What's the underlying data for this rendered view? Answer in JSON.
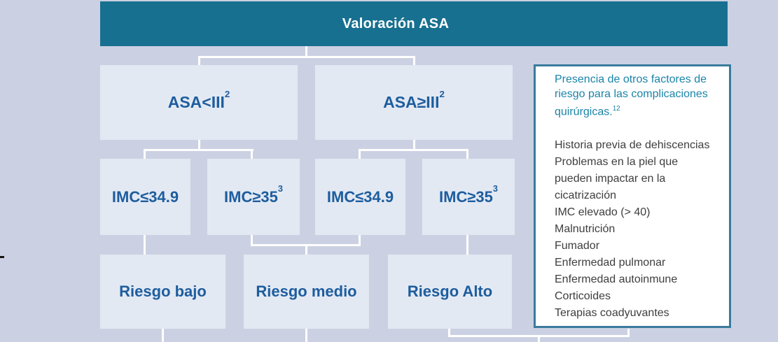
{
  "title_bar": {
    "title": "Valoración ASA"
  },
  "flowchart": {
    "nodes": {
      "asa_lt": {
        "text": "ASA<III",
        "sup": "2"
      },
      "asa_ge": {
        "text": "ASA≥III",
        "sup": "2"
      },
      "imc_low_left": {
        "text": "IMC≤34.9",
        "sup": ""
      },
      "imc_high_left": {
        "text": "IMC≥35",
        "sup": "3"
      },
      "imc_low_right": {
        "text": "IMC≤34.9",
        "sup": ""
      },
      "imc_high_right": {
        "text": "IMC≥35",
        "sup": "3"
      },
      "risk_low": {
        "text": "Riesgo bajo",
        "sup": ""
      },
      "risk_medium": {
        "text": "Riesgo medio",
        "sup": ""
      },
      "risk_high": {
        "text": "Riesgo Alto",
        "sup": ""
      }
    }
  },
  "side_panel": {
    "heading": "Presencia de otros factores de\nriesgo para las complicaciones\nquirúrgicas.",
    "heading_sup": "12",
    "risk_factors": [
      "Historia previa de dehiscencias",
      "Problemas en la piel que\npueden impactar en la\ncicatrización",
      "IMC elevado (> 40)",
      "Malnutrición",
      "Fumador",
      "Enfermedad pulmonar",
      "Enfermedad autoinmune",
      "Corticoides",
      "Terapias coadyuvantes"
    ]
  },
  "colors": {
    "background": "#cbd1e2",
    "header_teal": "#177090",
    "box_fill": "#e3e9f3",
    "box_text": "#1d5d9e",
    "connector": "#ffffff",
    "panel_border": "#3a7b9d",
    "panel_heading": "#1a84a8",
    "panel_text": "#3e3e40"
  }
}
